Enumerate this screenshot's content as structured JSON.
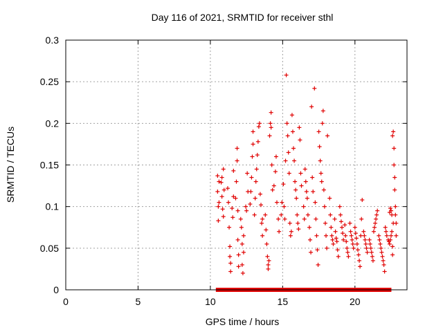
{
  "chart_data": {
    "type": "scatter",
    "title": "Day 116 of 2021, SRMTID for receiver sthl",
    "xlabel": "GPS time / hours",
    "ylabel": "SRMTID / TECUs",
    "xlim": [
      0,
      23.6
    ],
    "ylim": [
      0,
      0.3
    ],
    "xticks": [
      0,
      5,
      10,
      15,
      20
    ],
    "yticks": [
      0,
      0.05,
      0.1,
      0.15,
      0.2,
      0.25,
      0.3
    ],
    "ytick_labels": [
      "0",
      "0.05",
      "0.1",
      "0.15",
      "0.2",
      "0.25",
      "0.3"
    ],
    "grid": true,
    "marker": "plus",
    "color": "#e00000",
    "series": [
      {
        "points": [
          [
            10.5,
            0.137
          ],
          [
            10.5,
            0.118
          ],
          [
            10.55,
            0.1
          ],
          [
            10.55,
            0.083
          ],
          [
            10.6,
            0.13
          ],
          [
            10.6,
            0.105
          ],
          [
            10.75,
            0.129
          ],
          [
            10.8,
            0.135
          ],
          [
            10.8,
            0.112
          ],
          [
            10.85,
            0.097
          ],
          [
            10.9,
            0.088
          ],
          [
            10.9,
            0.145
          ],
          [
            10.95,
            0.12
          ],
          [
            11.2,
            0.122
          ],
          [
            11.25,
            0.105
          ],
          [
            11.3,
            0.075
          ],
          [
            11.35,
            0.052
          ],
          [
            11.35,
            0.04
          ],
          [
            11.4,
            0.032
          ],
          [
            11.4,
            0.022
          ],
          [
            11.5,
            0.098
          ],
          [
            11.55,
            0.087
          ],
          [
            11.6,
            0.112
          ],
          [
            11.6,
            0.143
          ],
          [
            11.75,
            0.11
          ],
          [
            11.8,
            0.13
          ],
          [
            11.85,
            0.155
          ],
          [
            11.85,
            0.17
          ],
          [
            11.9,
            0.095
          ],
          [
            11.9,
            0.06
          ],
          [
            11.95,
            0.042
          ],
          [
            11.95,
            0.028
          ],
          [
            12.1,
            0.085
          ],
          [
            12.15,
            0.075
          ],
          [
            12.2,
            0.055
          ],
          [
            12.2,
            0.03
          ],
          [
            12.25,
            0.02
          ],
          [
            12.3,
            0.045
          ],
          [
            12.3,
            0.065
          ],
          [
            12.45,
            0.1
          ],
          [
            12.5,
            0.095
          ],
          [
            12.55,
            0.14
          ],
          [
            12.6,
            0.118
          ],
          [
            12.75,
            0.103
          ],
          [
            12.8,
            0.118
          ],
          [
            12.85,
            0.135
          ],
          [
            12.9,
            0.16
          ],
          [
            12.95,
            0.175
          ],
          [
            12.95,
            0.19
          ],
          [
            13.05,
            0.09
          ],
          [
            13.1,
            0.11
          ],
          [
            13.15,
            0.13
          ],
          [
            13.2,
            0.145
          ],
          [
            13.25,
            0.162
          ],
          [
            13.3,
            0.178
          ],
          [
            13.35,
            0.196
          ],
          [
            13.4,
            0.2
          ],
          [
            13.45,
            0.115
          ],
          [
            13.5,
            0.102
          ],
          [
            13.55,
            0.08
          ],
          [
            13.6,
            0.065
          ],
          [
            13.6,
            0.085
          ],
          [
            13.8,
            0.09
          ],
          [
            13.85,
            0.072
          ],
          [
            13.9,
            0.055
          ],
          [
            13.95,
            0.04
          ],
          [
            14.0,
            0.03
          ],
          [
            14.0,
            0.025
          ],
          [
            14.05,
            0.035
          ],
          [
            14.1,
            0.185
          ],
          [
            14.15,
            0.2
          ],
          [
            14.2,
            0.213
          ],
          [
            14.2,
            0.195
          ],
          [
            14.25,
            0.15
          ],
          [
            14.3,
            0.12
          ],
          [
            14.4,
            0.125
          ],
          [
            14.5,
            0.142
          ],
          [
            14.55,
            0.16
          ],
          [
            14.6,
            0.105
          ],
          [
            14.7,
            0.085
          ],
          [
            14.75,
            0.07
          ],
          [
            14.9,
            0.09
          ],
          [
            14.95,
            0.105
          ],
          [
            15.05,
            0.127
          ],
          [
            15.1,
            0.1
          ],
          [
            15.15,
            0.085
          ],
          [
            15.2,
            0.155
          ],
          [
            15.25,
            0.258
          ],
          [
            15.3,
            0.2
          ],
          [
            15.35,
            0.185
          ],
          [
            15.4,
            0.165
          ],
          [
            15.45,
            0.14
          ],
          [
            15.5,
            0.08
          ],
          [
            15.55,
            0.065
          ],
          [
            15.6,
            0.07
          ],
          [
            15.65,
            0.21
          ],
          [
            15.7,
            0.19
          ],
          [
            15.75,
            0.17
          ],
          [
            15.8,
            0.155
          ],
          [
            15.85,
            0.13
          ],
          [
            15.9,
            0.12
          ],
          [
            15.95,
            0.11
          ],
          [
            16.0,
            0.09
          ],
          [
            16.05,
            0.08
          ],
          [
            16.1,
            0.073
          ],
          [
            16.15,
            0.195
          ],
          [
            16.2,
            0.18
          ],
          [
            16.25,
            0.14
          ],
          [
            16.3,
            0.125
          ],
          [
            16.45,
            0.1
          ],
          [
            16.5,
            0.085
          ],
          [
            16.55,
            0.145
          ],
          [
            16.6,
            0.13
          ],
          [
            16.65,
            0.118
          ],
          [
            16.7,
            0.11
          ],
          [
            16.75,
            0.09
          ],
          [
            16.85,
            0.075
          ],
          [
            16.9,
            0.06
          ],
          [
            16.95,
            0.045
          ],
          [
            17.0,
            0.22
          ],
          [
            17.05,
            0.135
          ],
          [
            17.1,
            0.118
          ],
          [
            17.2,
            0.242
          ],
          [
            17.25,
            0.105
          ],
          [
            17.3,
            0.085
          ],
          [
            17.35,
            0.065
          ],
          [
            17.4,
            0.048
          ],
          [
            17.45,
            0.03
          ],
          [
            17.5,
            0.19
          ],
          [
            17.55,
            0.172
          ],
          [
            17.6,
            0.155
          ],
          [
            17.65,
            0.14
          ],
          [
            17.7,
            0.13
          ],
          [
            17.75,
            0.2
          ],
          [
            17.8,
            0.215
          ],
          [
            17.85,
            0.12
          ],
          [
            17.9,
            0.1
          ],
          [
            17.95,
            0.08
          ],
          [
            18.0,
            0.065
          ],
          [
            18.05,
            0.05
          ],
          [
            18.1,
            0.185
          ],
          [
            18.25,
            0.11
          ],
          [
            18.3,
            0.09
          ],
          [
            18.35,
            0.075
          ],
          [
            18.4,
            0.065
          ],
          [
            18.45,
            0.06
          ],
          [
            18.5,
            0.055
          ],
          [
            18.6,
            0.085
          ],
          [
            18.65,
            0.07
          ],
          [
            18.7,
            0.062
          ],
          [
            18.75,
            0.058
          ],
          [
            18.8,
            0.048
          ],
          [
            18.85,
            0.04
          ],
          [
            18.95,
            0.1
          ],
          [
            19.0,
            0.09
          ],
          [
            19.05,
            0.082
          ],
          [
            19.1,
            0.075
          ],
          [
            19.15,
            0.068
          ],
          [
            19.2,
            0.06
          ],
          [
            19.3,
            0.078
          ],
          [
            19.35,
            0.065
          ],
          [
            19.4,
            0.058
          ],
          [
            19.45,
            0.05
          ],
          [
            19.5,
            0.045
          ],
          [
            19.55,
            0.04
          ],
          [
            19.65,
            0.08
          ],
          [
            19.7,
            0.07
          ],
          [
            19.75,
            0.065
          ],
          [
            19.8,
            0.06
          ],
          [
            19.85,
            0.055
          ],
          [
            19.9,
            0.05
          ],
          [
            20.0,
            0.075
          ],
          [
            20.05,
            0.068
          ],
          [
            20.1,
            0.062
          ],
          [
            20.15,
            0.055
          ],
          [
            20.2,
            0.048
          ],
          [
            20.25,
            0.042
          ],
          [
            20.3,
            0.035
          ],
          [
            20.35,
            0.028
          ],
          [
            20.4,
            0.065
          ],
          [
            20.45,
            0.085
          ],
          [
            20.5,
            0.108
          ],
          [
            20.6,
            0.07
          ],
          [
            20.65,
            0.065
          ],
          [
            20.7,
            0.06
          ],
          [
            20.75,
            0.055
          ],
          [
            20.8,
            0.05
          ],
          [
            20.85,
            0.045
          ],
          [
            21.0,
            0.06
          ],
          [
            21.05,
            0.055
          ],
          [
            21.1,
            0.05
          ],
          [
            21.15,
            0.045
          ],
          [
            21.2,
            0.04
          ],
          [
            21.25,
            0.035
          ],
          [
            21.3,
            0.07
          ],
          [
            21.35,
            0.075
          ],
          [
            21.4,
            0.08
          ],
          [
            21.45,
            0.085
          ],
          [
            21.5,
            0.09
          ],
          [
            21.55,
            0.095
          ],
          [
            21.65,
            0.065
          ],
          [
            21.7,
            0.06
          ],
          [
            21.75,
            0.055
          ],
          [
            21.8,
            0.05
          ],
          [
            21.85,
            0.045
          ],
          [
            21.9,
            0.04
          ],
          [
            21.95,
            0.035
          ],
          [
            22.0,
            0.03
          ],
          [
            22.05,
            0.022
          ],
          [
            22.1,
            0.075
          ],
          [
            22.15,
            0.07
          ],
          [
            22.2,
            0.065
          ],
          [
            22.3,
            0.06
          ],
          [
            22.35,
            0.058
          ],
          [
            22.4,
            0.055
          ],
          [
            22.45,
            0.06
          ],
          [
            22.5,
            0.065
          ],
          [
            22.55,
            0.07
          ],
          [
            22.6,
            0.185
          ],
          [
            22.65,
            0.19
          ],
          [
            22.7,
            0.17
          ],
          [
            22.7,
            0.15
          ],
          [
            22.75,
            0.135
          ],
          [
            22.75,
            0.12
          ],
          [
            22.8,
            0.1
          ],
          [
            22.8,
            0.09
          ],
          [
            22.85,
            0.08
          ],
          [
            22.85,
            0.065
          ],
          [
            22.6,
            0.052
          ],
          [
            22.6,
            0.042
          ],
          [
            22.65,
            0.08
          ],
          [
            22.55,
            0.09
          ],
          [
            22.5,
            0.095
          ],
          [
            22.45,
            0.098
          ],
          [
            22.4,
            0.093
          ]
        ]
      }
    ],
    "zero_marks": [
      10.5,
      10.6,
      10.7,
      10.8,
      10.9,
      11.0,
      11.1,
      11.2,
      11.3,
      11.4,
      11.5,
      11.6,
      11.7,
      11.8,
      11.9,
      12.0,
      12.1,
      12.2,
      12.3,
      12.4,
      12.5,
      12.6,
      12.7,
      12.8,
      12.9,
      13.0,
      13.1,
      13.2,
      13.3,
      13.4,
      13.5,
      13.6,
      13.7,
      13.8,
      13.9,
      14.0,
      14.1,
      14.2,
      14.3,
      14.4,
      14.5,
      14.6,
      14.7,
      14.8,
      14.9,
      15.0,
      15.1,
      15.2,
      15.3,
      15.4,
      15.5,
      15.6,
      15.7,
      15.8,
      15.9,
      16.0,
      16.1,
      16.2,
      16.3,
      16.4,
      16.5,
      16.6,
      16.7,
      16.8,
      16.9,
      17.0,
      17.1,
      17.2,
      17.3,
      17.4,
      17.5,
      17.6,
      17.7,
      17.8,
      17.9,
      18.0,
      18.1,
      18.2,
      18.3,
      18.4,
      18.5,
      18.6,
      18.7,
      18.8,
      18.9,
      19.0,
      19.1,
      19.2,
      19.3,
      19.4,
      19.5,
      19.6,
      19.7,
      19.8,
      19.9,
      20.0,
      20.1,
      20.2,
      20.3,
      20.4,
      20.5,
      20.6,
      20.7,
      20.8,
      20.9,
      21.0,
      21.1,
      21.2,
      21.3,
      21.4,
      21.5,
      21.6,
      21.7,
      21.8,
      21.9,
      22.0,
      22.1,
      22.2,
      22.3,
      22.4
    ]
  }
}
